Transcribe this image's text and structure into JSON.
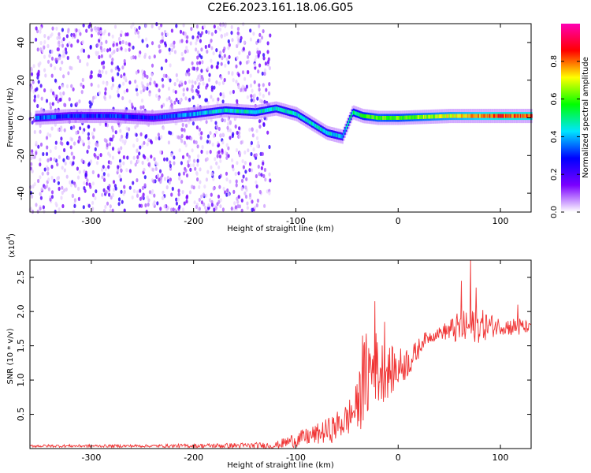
{
  "title": "C2E6.2023.161.18.06.G05",
  "chart_data": [
    {
      "type": "heatmap",
      "name": "spectrogram",
      "xlabel": "Height of straight line (km)",
      "ylabel": "Frequency (Hz)",
      "xlim": [
        -360,
        130
      ],
      "ylim": [
        -50,
        50
      ],
      "xticks": [
        -300,
        -200,
        -100,
        0,
        100
      ],
      "yticks": [
        -40,
        -20,
        0,
        20,
        40
      ],
      "colorbar": {
        "label": "Normalized spectral amplitude",
        "range": [
          0.0,
          1.0
        ],
        "ticks": [
          0.0,
          0.2,
          0.4,
          0.6,
          0.8
        ],
        "colors": [
          "#ffffff",
          "#7b00ff",
          "#0000ff",
          "#00e5ff",
          "#00ff00",
          "#ffff00",
          "#ff0000",
          "#ff00b4"
        ]
      },
      "signal_track": {
        "description": "main Doppler trace",
        "x": [
          -355,
          -320,
          -280,
          -240,
          -200,
          -170,
          -140,
          -120,
          -100,
          -85,
          -70,
          -55,
          -45,
          -35,
          -20,
          0,
          50,
          100,
          130
        ],
        "y": [
          0,
          1,
          1,
          0,
          2,
          4,
          3,
          5,
          2,
          -3,
          -8,
          -10,
          3,
          1,
          0,
          0,
          1,
          1,
          1
        ],
        "amplitude": [
          0.35,
          0.3,
          0.3,
          0.28,
          0.4,
          0.45,
          0.45,
          0.45,
          0.45,
          0.45,
          0.45,
          0.4,
          0.5,
          0.55,
          0.62,
          0.6,
          0.7,
          0.82,
          0.8
        ]
      },
      "noise_region": {
        "x_from": -360,
        "x_to": -125,
        "y_range": [
          -50,
          50
        ],
        "amplitude": [
          0.02,
          0.25
        ]
      }
    },
    {
      "type": "line",
      "name": "snr",
      "color": "#f03535",
      "xlabel": "Height of straight line (km)",
      "ylabel": "SNR (10 * v/v)",
      "yscale_label": "(x10",
      "yscale_exp": "4",
      "yscale_close": ")",
      "xlim": [
        -360,
        130
      ],
      "ylim": [
        0,
        2.75
      ],
      "xticks": [
        -300,
        -200,
        -100,
        0,
        100
      ],
      "yticks": [
        0.5,
        1.0,
        1.5,
        2.0,
        2.5
      ],
      "yticklabels": [
        "0.5",
        "1.0",
        "1.5",
        "2.0",
        "2.5"
      ],
      "envelope": {
        "x": [
          -360,
          -240,
          -120,
          -105,
          -80,
          -65,
          -50,
          -40,
          -35,
          -30,
          -25,
          -20,
          -12,
          0,
          15,
          25,
          40,
          60,
          80,
          100,
          120,
          130
        ],
        "y": [
          0.04,
          0.04,
          0.05,
          0.12,
          0.22,
          0.3,
          0.45,
          0.65,
          0.95,
          1.15,
          1.25,
          1.2,
          1.15,
          1.2,
          1.35,
          1.6,
          1.7,
          1.78,
          1.82,
          1.8,
          1.78,
          1.78
        ],
        "noise": [
          0.02,
          0.02,
          0.05,
          0.1,
          0.15,
          0.2,
          0.25,
          0.35,
          0.6,
          0.7,
          0.65,
          0.55,
          0.4,
          0.3,
          0.2,
          0.1,
          0.08,
          0.25,
          0.25,
          0.12,
          0.15,
          0.04
        ]
      },
      "peaks": [
        {
          "x": -35,
          "y": 1.65
        },
        {
          "x": -23,
          "y": 2.15
        },
        {
          "x": -13,
          "y": 1.85
        },
        {
          "x": 62,
          "y": 2.45
        },
        {
          "x": 71,
          "y": 2.75
        },
        {
          "x": 76,
          "y": 2.35
        },
        {
          "x": 117,
          "y": 2.1
        }
      ]
    }
  ]
}
